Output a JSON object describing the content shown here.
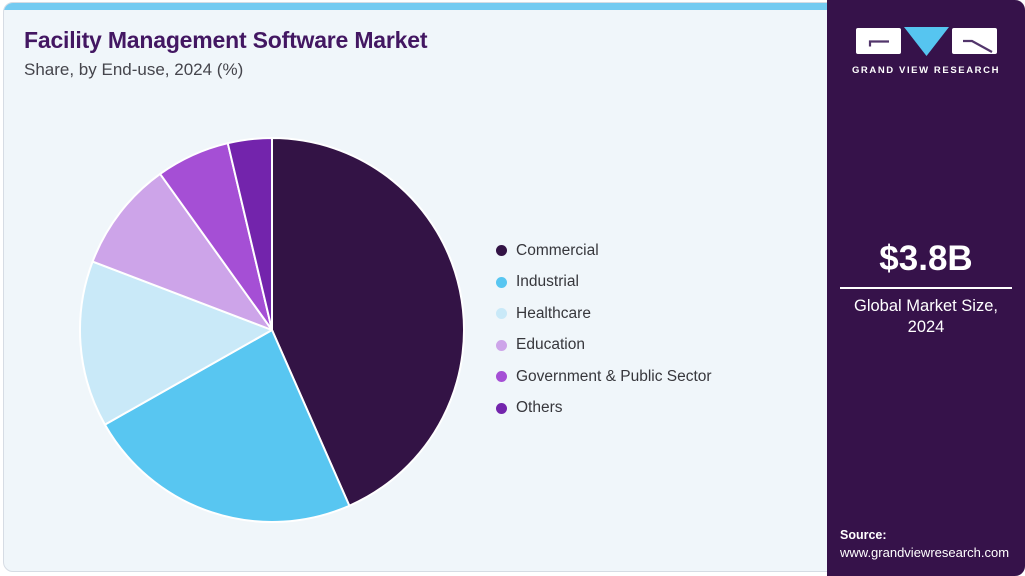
{
  "header": {
    "title": "Facility Management Software Market",
    "subtitle": "Share, by End-use, 2024 (%)"
  },
  "sidebar": {
    "brand_name": "GRAND VIEW RESEARCH",
    "market_size_value": "$3.8B",
    "market_size_label": "Global Market Size, 2024",
    "source_label": "Source:",
    "source_url": "www.grandviewresearch.com",
    "background_color": "#36124a",
    "logo_triangle_color": "#56c5f0"
  },
  "theme": {
    "accent_strip_color": "#74cbf1",
    "title_color": "#431762",
    "card_background": "#f0f6fa"
  },
  "chart_data": {
    "type": "pie",
    "title": "Facility Management Software Market Share, by End-use, 2024 (%)",
    "unit": "%",
    "categories": [
      "Commercial",
      "Industrial",
      "Healthcare",
      "Education",
      "Government & Public Sector",
      "Others"
    ],
    "values": [
      43.4,
      23.4,
      14.0,
      9.3,
      6.2,
      3.7
    ],
    "colors": [
      "#331345",
      "#58c6f1",
      "#c9e9f8",
      "#cda4e9",
      "#a54fd5",
      "#7324ac"
    ],
    "start_angle_deg": 0,
    "direction": "clockwise",
    "legend_position": "right",
    "data_labels_shown": false
  }
}
